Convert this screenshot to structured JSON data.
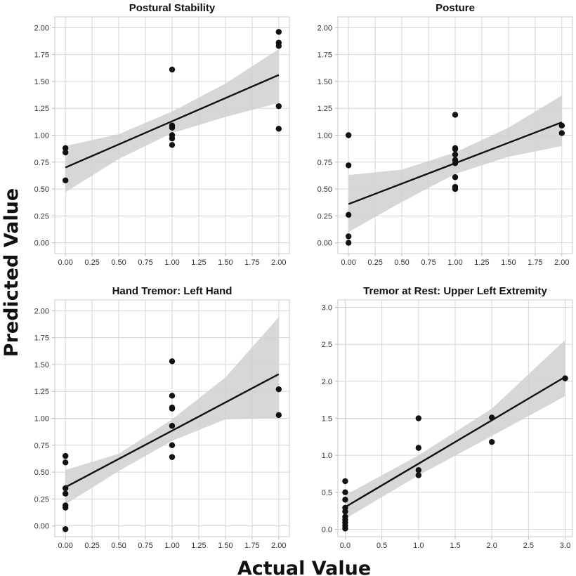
{
  "figure": {
    "ylabel": "Predicted Value",
    "xlabel": "Actual Value"
  },
  "chart_data": [
    {
      "type": "scatter",
      "title": "Postural Stability",
      "xlim": [
        -0.1,
        2.1
      ],
      "ylim": [
        -0.1,
        2.1
      ],
      "xticks": [
        "0.00",
        "0.25",
        "0.50",
        "0.75",
        "1.00",
        "1.25",
        "1.50",
        "1.75",
        "2.00"
      ],
      "yticks": [
        "0.00",
        "0.25",
        "0.50",
        "0.75",
        "1.00",
        "1.25",
        "1.50",
        "1.75",
        "2.00"
      ],
      "grid": true,
      "points": {
        "x": [
          0,
          0,
          0,
          1,
          1,
          1,
          1,
          1,
          1,
          2,
          2,
          2,
          2,
          2
        ],
        "y": [
          0.88,
          0.84,
          0.58,
          1.61,
          1.09,
          1.07,
          1.0,
          0.97,
          0.91,
          1.96,
          1.86,
          1.83,
          1.27,
          1.06
        ]
      },
      "regression": {
        "x": [
          0,
          2
        ],
        "y": [
          0.7,
          1.56
        ]
      },
      "confidence_band": {
        "x": [
          0,
          0.5,
          1,
          1.5,
          2
        ],
        "lower": [
          0.47,
          0.78,
          1.02,
          1.17,
          1.3
        ],
        "upper": [
          0.9,
          1.01,
          1.22,
          1.48,
          1.8
        ]
      }
    },
    {
      "type": "scatter",
      "title": "Posture",
      "xlim": [
        -0.1,
        2.1
      ],
      "ylim": [
        -0.1,
        2.1
      ],
      "xticks": [
        "0.00",
        "0.25",
        "0.50",
        "0.75",
        "1.00",
        "1.25",
        "1.50",
        "1.75",
        "2.00"
      ],
      "yticks": [
        "0.00",
        "0.25",
        "0.50",
        "0.75",
        "1.00",
        "1.25",
        "1.50",
        "1.75",
        "2.00"
      ],
      "grid": true,
      "points": {
        "x": [
          0,
          0,
          0,
          0,
          0,
          1,
          1,
          1,
          1,
          1,
          1,
          1,
          1,
          1,
          2,
          2
        ],
        "y": [
          1.0,
          0.72,
          0.26,
          0.06,
          0.0,
          1.19,
          0.88,
          0.87,
          0.82,
          0.77,
          0.74,
          0.61,
          0.52,
          0.5,
          1.09,
          1.02
        ]
      },
      "regression": {
        "x": [
          0,
          2
        ],
        "y": [
          0.36,
          1.12
        ]
      },
      "confidence_band": {
        "x": [
          0,
          0.5,
          1,
          1.5,
          2
        ],
        "lower": [
          0.1,
          0.38,
          0.64,
          0.8,
          0.9
        ],
        "upper": [
          0.63,
          0.68,
          0.84,
          1.07,
          1.37
        ]
      }
    },
    {
      "type": "scatter",
      "title": "Hand Tremor: Left Hand",
      "xlim": [
        -0.1,
        2.1
      ],
      "ylim": [
        -0.1,
        2.1
      ],
      "xticks": [
        "0.00",
        "0.25",
        "0.50",
        "0.75",
        "1.00",
        "1.25",
        "1.50",
        "1.75",
        "2.00"
      ],
      "yticks": [
        "0.00",
        "0.25",
        "0.50",
        "0.75",
        "1.00",
        "1.25",
        "1.50",
        "1.75",
        "2.00"
      ],
      "grid": true,
      "points": {
        "x": [
          0,
          0,
          0,
          0,
          0,
          0,
          0,
          1,
          1,
          1,
          1,
          1,
          1,
          1,
          2,
          2
        ],
        "y": [
          0.65,
          0.59,
          0.35,
          0.3,
          0.19,
          0.17,
          -0.03,
          1.53,
          1.21,
          1.1,
          1.09,
          0.93,
          0.75,
          0.64,
          1.27,
          1.03
        ]
      },
      "regression": {
        "x": [
          0,
          2
        ],
        "y": [
          0.36,
          1.41
        ]
      },
      "confidence_band": {
        "x": [
          0,
          0.5,
          1,
          1.5,
          2
        ],
        "lower": [
          0.2,
          0.51,
          0.79,
          0.99,
          1.0
        ],
        "upper": [
          0.52,
          0.67,
          0.99,
          1.38,
          1.94
        ]
      }
    },
    {
      "type": "scatter",
      "title": "Tremor at Rest: Upper Left Extremity",
      "xlim": [
        -0.1,
        3.1
      ],
      "ylim": [
        -0.1,
        3.1
      ],
      "xticks": [
        "0.0",
        "0.5",
        "1.0",
        "1.5",
        "2.0",
        "2.5",
        "3.0"
      ],
      "yticks": [
        "0.0",
        "0.5",
        "1.0",
        "1.5",
        "2.0",
        "2.5",
        "3.0"
      ],
      "grid": true,
      "points": {
        "x": [
          0,
          0,
          0,
          0,
          0,
          0,
          0,
          0,
          0,
          0,
          1,
          1,
          1,
          1,
          2,
          2,
          3
        ],
        "y": [
          0.65,
          0.5,
          0.4,
          0.29,
          0.24,
          0.17,
          0.13,
          0.09,
          0.05,
          0.01,
          1.5,
          1.1,
          0.8,
          0.73,
          1.51,
          1.18,
          2.04
        ]
      },
      "regression": {
        "x": [
          0,
          3
        ],
        "y": [
          0.3,
          2.06
        ]
      },
      "confidence_band": {
        "x": [
          0,
          1,
          2,
          3
        ],
        "lower": [
          0.14,
          0.73,
          1.26,
          1.8
        ],
        "upper": [
          0.46,
          1.0,
          1.63,
          2.56
        ]
      }
    }
  ]
}
